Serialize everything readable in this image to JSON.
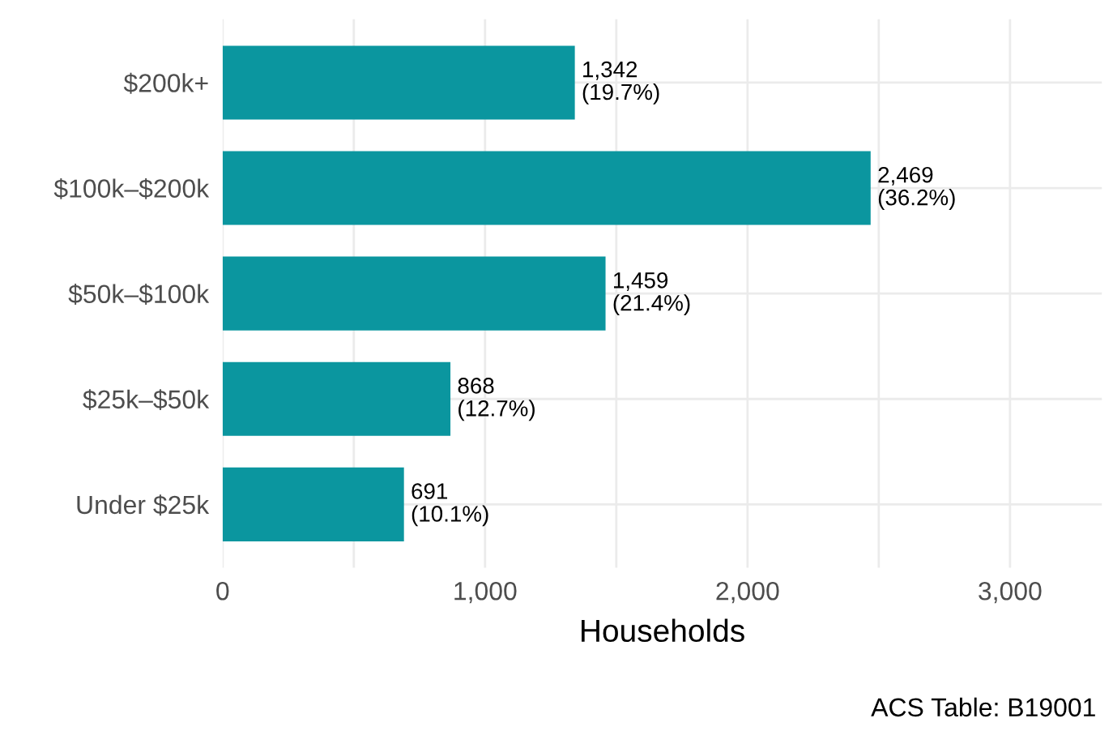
{
  "chart_data": {
    "type": "bar",
    "orientation": "horizontal",
    "categories": [
      "$200k+",
      "$100k–$200k",
      "$50k–$100k",
      "$25k–$50k",
      "Under $25k"
    ],
    "values": [
      1342,
      2469,
      1459,
      868,
      691
    ],
    "value_labels": [
      "1,342\n(19.7%)",
      "2,469\n(36.2%)",
      "1,459\n(21.4%)",
      "868\n(12.7%)",
      "691\n(10.1%)"
    ],
    "color": "#0b969f",
    "xlim": [
      0,
      3350
    ],
    "xticks": [
      {
        "value": 0,
        "label": "0"
      },
      {
        "value": 500,
        "label": null
      },
      {
        "value": 1000,
        "label": "1,000"
      },
      {
        "value": 1500,
        "label": null
      },
      {
        "value": 2000,
        "label": "2,000"
      },
      {
        "value": 2500,
        "label": null
      },
      {
        "value": 3000,
        "label": "3,000"
      }
    ],
    "xlabel": "Households",
    "grid": true,
    "annotations": [
      "ACS Table: B19001"
    ]
  }
}
